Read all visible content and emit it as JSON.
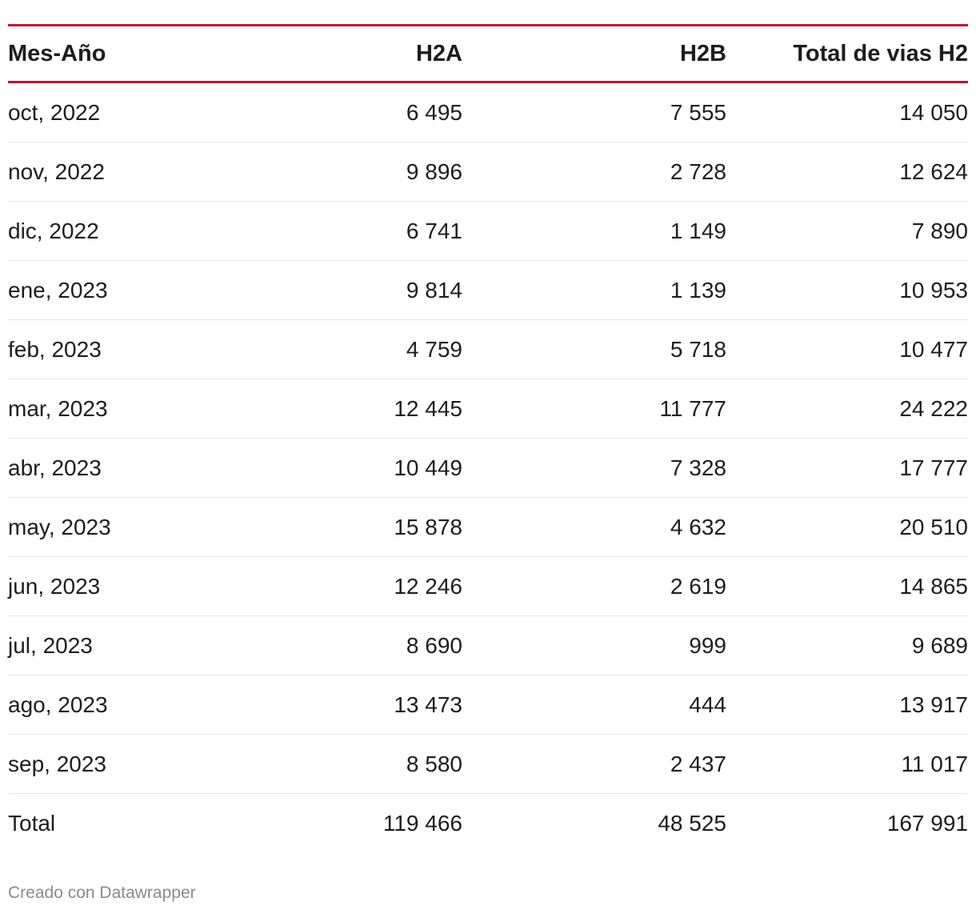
{
  "chart_data": {
    "type": "table",
    "columns": [
      "Mes-Año",
      "H2A",
      "H2B",
      "Total de vias H2"
    ],
    "rows": [
      [
        "oct, 2022",
        "6 495",
        "7 555",
        "14 050"
      ],
      [
        "nov, 2022",
        "9 896",
        "2 728",
        "12 624"
      ],
      [
        "dic, 2022",
        "6 741",
        "1 149",
        "7 890"
      ],
      [
        "ene, 2023",
        "9 814",
        "1 139",
        "10 953"
      ],
      [
        "feb, 2023",
        "4 759",
        "5 718",
        "10 477"
      ],
      [
        "mar, 2023",
        "12 445",
        "11 777",
        "24 222"
      ],
      [
        "abr, 2023",
        "10 449",
        "7 328",
        "17 777"
      ],
      [
        "may, 2023",
        "15 878",
        "4 632",
        "20 510"
      ],
      [
        "jun, 2023",
        "12 246",
        "2 619",
        "14 865"
      ],
      [
        "jul, 2023",
        "8 690",
        "999",
        "9 689"
      ],
      [
        "ago, 2023",
        "13 473",
        "444",
        "13 917"
      ],
      [
        "sep, 2023",
        "8 580",
        "2 437",
        "11 017"
      ],
      [
        "Total",
        "119 466",
        "48 525",
        "167 991"
      ]
    ],
    "accent_color": "#c8102e"
  },
  "footer": {
    "credit": "Creado con Datawrapper"
  }
}
